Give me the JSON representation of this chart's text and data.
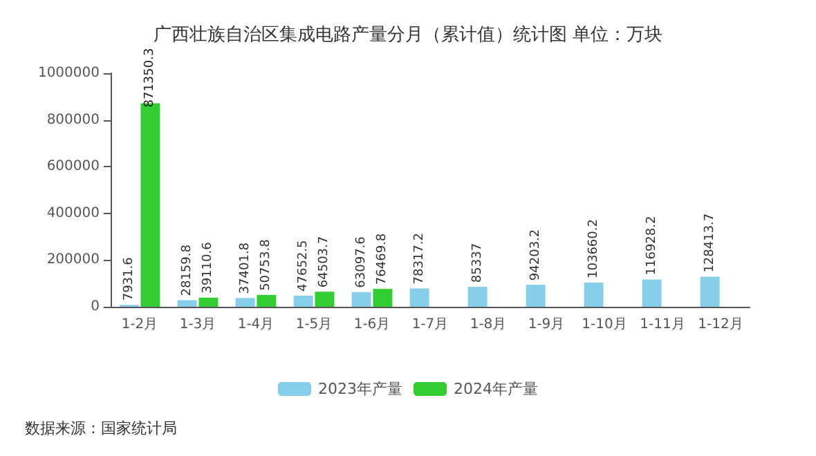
{
  "chart_data": {
    "type": "bar",
    "title": "广西壮族自治区集成电路产量分月（累计值）统计图 单位：万块",
    "categories": [
      "1-2月",
      "1-3月",
      "1-4月",
      "1-5月",
      "1-6月",
      "1-7月",
      "1-8月",
      "1-9月",
      "1-10月",
      "1-11月",
      "1-12月"
    ],
    "series": [
      {
        "name": "2023年产量",
        "color": "#87ceeb",
        "values": [
          7931.6,
          28159.8,
          37401.8,
          47652.5,
          63097.6,
          78317.2,
          85337,
          94203.2,
          103660.2,
          116928.2,
          128413.7
        ]
      },
      {
        "name": "2024年产量",
        "color": "#33cc33",
        "values": [
          871350.3,
          39110.6,
          50753.8,
          64503.7,
          76469.8,
          null,
          null,
          null,
          null,
          null,
          null
        ]
      }
    ],
    "ylim": [
      0,
      1000000
    ],
    "yticks": [
      0,
      200000,
      400000,
      600000,
      800000,
      1000000
    ],
    "grid": false,
    "legend": "bottom",
    "data_labels": true,
    "annotations": [
      "数据来源：国家统计局"
    ]
  }
}
